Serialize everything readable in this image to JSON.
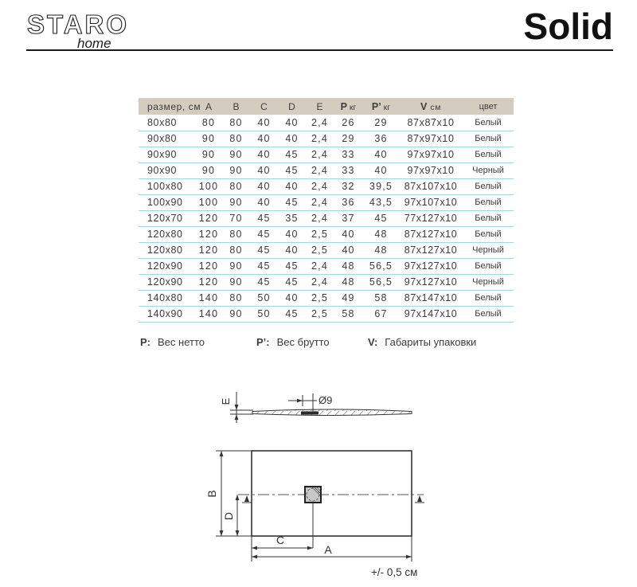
{
  "header": {
    "brand": "STARO",
    "brand_sub": "home",
    "title": "Solid"
  },
  "table": {
    "columns": [
      {
        "key": "size",
        "label": "размер, см"
      },
      {
        "key": "a",
        "label": "A"
      },
      {
        "key": "b",
        "label": "B"
      },
      {
        "key": "c",
        "label": "C"
      },
      {
        "key": "d",
        "label": "D"
      },
      {
        "key": "e",
        "label": "E"
      },
      {
        "key": "p",
        "label": "P",
        "unit": "кг"
      },
      {
        "key": "p2",
        "label": "P’",
        "unit": "кг"
      },
      {
        "key": "v",
        "label": "V",
        "unit": "см"
      },
      {
        "key": "color",
        "label": "цвет"
      }
    ],
    "rows": [
      [
        "80x80",
        "80",
        "80",
        "40",
        "40",
        "2,4",
        "26",
        "29",
        "87x87x10",
        "Белый"
      ],
      [
        "90x80",
        "90",
        "80",
        "40",
        "40",
        "2,4",
        "29",
        "36",
        "87x97x10",
        "Белый"
      ],
      [
        "90x90",
        "90",
        "90",
        "40",
        "45",
        "2,4",
        "33",
        "40",
        "97x97x10",
        "Белый"
      ],
      [
        "90x90",
        "90",
        "90",
        "40",
        "45",
        "2,4",
        "33",
        "40",
        "97x97x10",
        "Черный"
      ],
      [
        "100x80",
        "100",
        "80",
        "40",
        "40",
        "2,4",
        "32",
        "39,5",
        "87x107x10",
        "Белый"
      ],
      [
        "100x90",
        "100",
        "90",
        "40",
        "45",
        "2,4",
        "36",
        "43,5",
        "97x107x10",
        "Белый"
      ],
      [
        "120x70",
        "120",
        "70",
        "45",
        "35",
        "2,4",
        "37",
        "45",
        "77x127x10",
        "Белый"
      ],
      [
        "120x80",
        "120",
        "80",
        "45",
        "40",
        "2,5",
        "40",
        "48",
        "87x127x10",
        "Белый"
      ],
      [
        "120x80",
        "120",
        "80",
        "45",
        "40",
        "2,5",
        "40",
        "48",
        "87x127x10",
        "Черный"
      ],
      [
        "120x90",
        "120",
        "90",
        "45",
        "45",
        "2,4",
        "48",
        "56,5",
        "97x127x10",
        "Белый"
      ],
      [
        "120x90",
        "120",
        "90",
        "45",
        "45",
        "2,4",
        "48",
        "56,5",
        "97x127x10",
        "Черный"
      ],
      [
        "140x80",
        "140",
        "80",
        "50",
        "40",
        "2,5",
        "49",
        "58",
        "87x147x10",
        "Белый"
      ],
      [
        "140x90",
        "140",
        "90",
        "50",
        "45",
        "2,5",
        "58",
        "67",
        "97x147x10",
        "Белый"
      ]
    ]
  },
  "legend": [
    {
      "key": "P:",
      "text": "Вес нетто"
    },
    {
      "key": "P’:",
      "text": "Вес брутто"
    },
    {
      "key": "V:",
      "text": "Габариты упаковки"
    }
  ],
  "drawing": {
    "label_e": "E",
    "label_b": "B",
    "label_d": "D",
    "label_c": "C",
    "label_a": "A",
    "drain_diameter": "Ø9",
    "tolerance": "+/- 0,5 см"
  },
  "colors": {
    "header_bg": "#d5ccc0",
    "divider": "#a4d6e7",
    "text": "#3b3b3b",
    "line": "#333333"
  }
}
